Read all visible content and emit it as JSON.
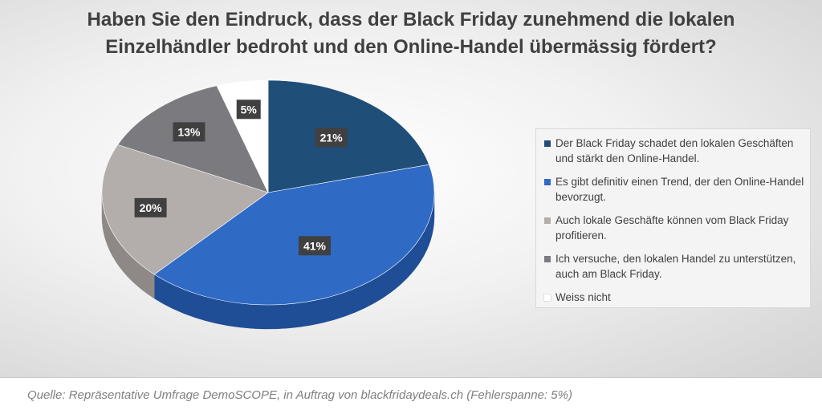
{
  "chart_data": {
    "type": "pie",
    "title": "Haben Sie den Eindruck, dass der Black Friday zunehmend die lokalen Einzelhändler bedroht und den Online-Handel übermässig fördert?",
    "slices": [
      {
        "label": "Der Black Friday schadet den lokalen Geschäften und stärkt den Online-Handel.",
        "value": 21,
        "display": "21%",
        "color": "#1f4e79",
        "side_color": "#173a5c"
      },
      {
        "label": "Es gibt definitiv einen Trend, der den Online-Handel bevorzugt.",
        "value": 41,
        "display": "41%",
        "color": "#2f6ac5",
        "side_color": "#1f4d96"
      },
      {
        "label": "Auch lokale Geschäfte können vom Black Friday profitieren.",
        "value": 20,
        "display": "20%",
        "color": "#b3aeac",
        "side_color": "#8e8987"
      },
      {
        "label": "Ich versuche, den lokalen Handel zu unterstützen, auch am Black Friday.",
        "value": 13,
        "display": "13%",
        "color": "#7b7b7f",
        "side_color": "#5d5d61"
      },
      {
        "label": "Weiss nicht",
        "value": 5,
        "display": "5%",
        "color": "#ffffff",
        "side_color": "#d9d9d9"
      }
    ],
    "legend_position": "right",
    "label_style": "dark-box"
  },
  "source_note": "Quelle: Repräsentative Umfrage DemoSCOPE, in Auftrag von blackfridaydeals.ch (Fehlerspanne: 5%)"
}
